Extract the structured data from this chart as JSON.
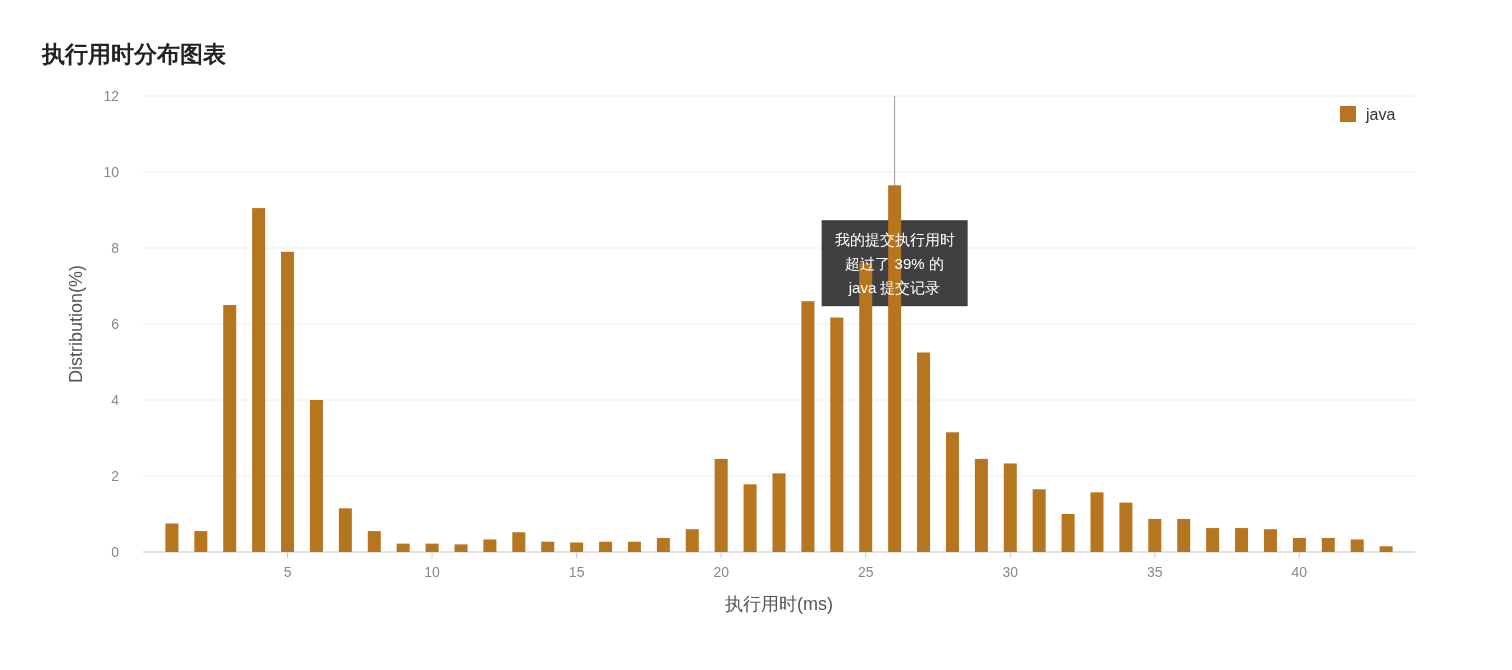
{
  "chart_data": {
    "type": "bar",
    "title": "执行用时分布图表",
    "xlabel": "执行用时(ms)",
    "ylabel": "Distribution(%)",
    "x": [
      1,
      2,
      3,
      4,
      5,
      6,
      7,
      8,
      9,
      10,
      11,
      12,
      13,
      14,
      15,
      16,
      17,
      18,
      19,
      20,
      21,
      22,
      23,
      24,
      25,
      26,
      27,
      28,
      29,
      30,
      31,
      32,
      33,
      34,
      35,
      36,
      37,
      38,
      39,
      40,
      41,
      42,
      43
    ],
    "series": [
      {
        "name": "java",
        "color": "#b5761f",
        "values": [
          0.75,
          0.55,
          6.5,
          9.05,
          7.9,
          4.0,
          1.15,
          0.55,
          0.22,
          0.22,
          0.2,
          0.33,
          0.52,
          0.27,
          0.25,
          0.27,
          0.27,
          0.37,
          0.6,
          2.45,
          1.78,
          2.07,
          6.6,
          6.17,
          7.6,
          9.65,
          5.25,
          3.15,
          2.45,
          2.33,
          1.65,
          1.0,
          1.57,
          1.3,
          0.87,
          0.87,
          0.63,
          0.63,
          0.6,
          0.37,
          0.37,
          0.33,
          0.15
        ]
      }
    ],
    "xlim": [
      0,
      44
    ],
    "xticks": [
      5,
      10,
      15,
      20,
      25,
      30,
      35,
      40
    ],
    "ylim": [
      0,
      12
    ],
    "yticks": [
      0,
      2,
      4,
      6,
      8,
      10,
      12
    ],
    "grid": "y",
    "legend": "top right",
    "ref_lines": [
      {
        "axis": "x",
        "value": 26,
        "color": "#999999"
      }
    ],
    "annotations": [
      {
        "text": "我的提交执行用时超过了 39% 的 java 提交记录",
        "x": 26,
        "y": 7.6
      }
    ]
  }
}
